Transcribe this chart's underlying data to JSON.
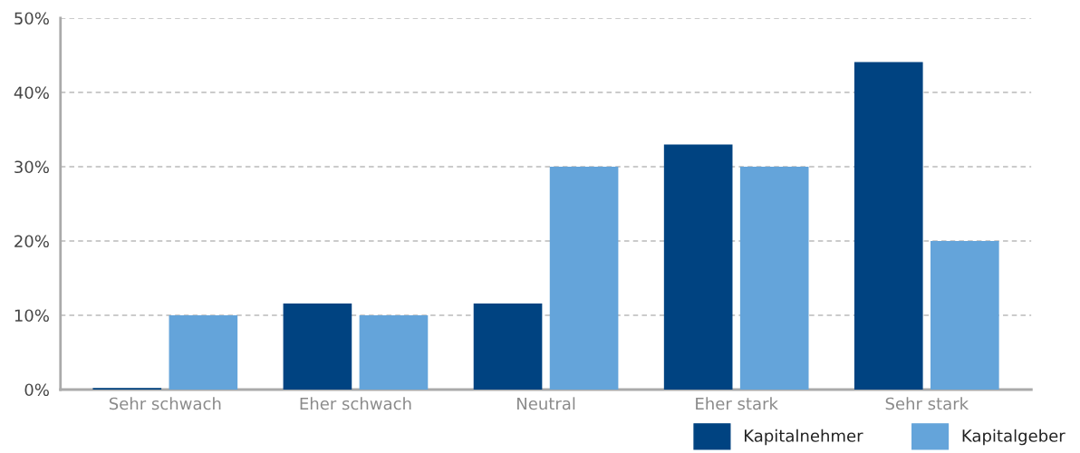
{
  "chart_data": {
    "type": "bar",
    "categories": [
      "Sehr schwach",
      "Eher schwach",
      "Neutral",
      "Eher stark",
      "Sehr stark"
    ],
    "series": [
      {
        "name": "Kapitalnehmer",
        "color": "#004381",
        "values": [
          0.2,
          11.6,
          11.6,
          33.0,
          44.1
        ]
      },
      {
        "name": "Kapitalgeber",
        "color": "#64a4da",
        "values": [
          10,
          10,
          30,
          30,
          20
        ]
      }
    ],
    "ylim": [
      0,
      50
    ],
    "yticks": [
      {
        "value": 0,
        "label": "0%"
      },
      {
        "value": 10,
        "label": "10%"
      },
      {
        "value": 20,
        "label": "20%"
      },
      {
        "value": 30,
        "label": "30%"
      },
      {
        "value": 40,
        "label": "40%"
      },
      {
        "value": 50,
        "label": "50%"
      }
    ],
    "grid": "y",
    "legend": "bottom right"
  }
}
